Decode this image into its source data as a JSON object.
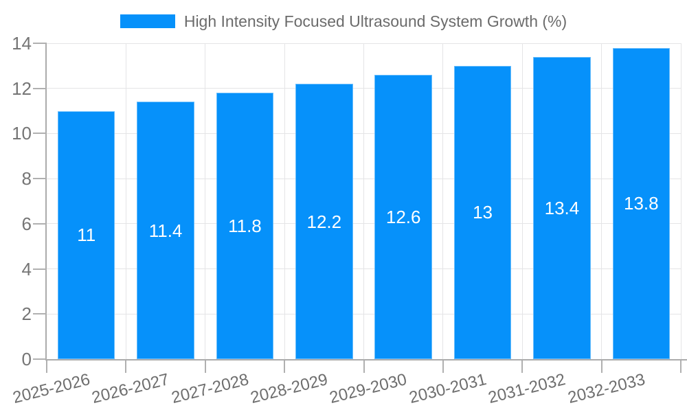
{
  "chart_data": {
    "type": "bar",
    "legend": "High Intensity Focused Ultrasound System Growth (%)",
    "categories": [
      "2025-2026",
      "2026-2027",
      "2027-2028",
      "2028-2029",
      "2029-2030",
      "2030-2031",
      "2031-2032",
      "2032-2033"
    ],
    "values": [
      11,
      11.4,
      11.8,
      12.2,
      12.6,
      13,
      13.4,
      13.8
    ],
    "y_ticks": [
      0,
      2,
      4,
      6,
      8,
      10,
      12,
      14
    ],
    "ylim": [
      0,
      14
    ],
    "xlabel": "",
    "ylabel": "",
    "grid": true,
    "legend_position": "top",
    "bar_label_position": "middle",
    "x_label_rotation_deg": -14,
    "colors": {
      "bar": "#0691fa",
      "bar_label": "#ffffff",
      "gridline": "#e4e4e6",
      "axis": "#ababab",
      "tick": "#b0b0b0",
      "y_tick_label": "#757575",
      "x_tick_label": "#6e6e6e",
      "legend_text": "#6b6b6b"
    }
  }
}
